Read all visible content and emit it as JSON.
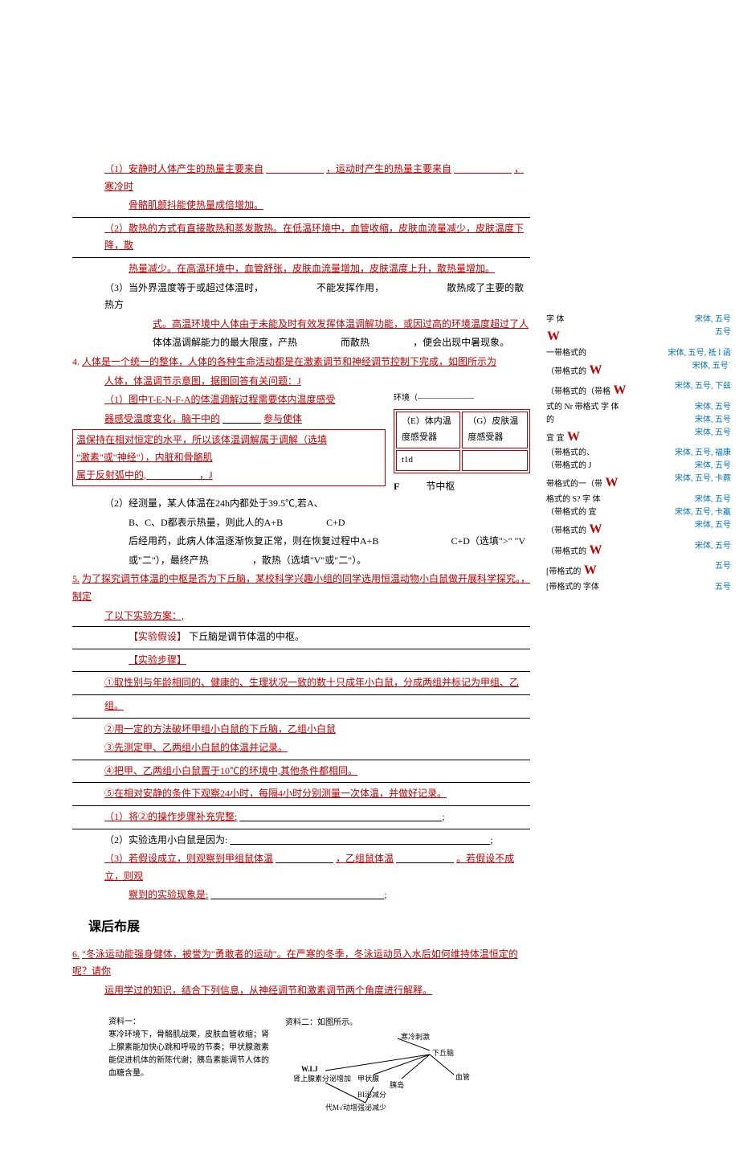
{
  "q1": {
    "line1_a": "（1）安静时人体产生的热量主要来自",
    "line1_b": "，运动时产生的热量主要来自",
    "line1_c": "，寒冷时",
    "line2": "骨骼肌颤抖能使热量成倍增加。",
    "line3": "（2）散热的方式有直接散热和蒸发散热。在低温环境中，血管收缩，皮肤血流量减少，皮肤温度下降，散",
    "line4": "热量减少。在高温环境中，血管舒张，皮肤血流量增加，皮肤温度上升，散热量增加。",
    "line5_a": "（3）当外界温度等于或超过体温时，",
    "line5_b": "不能发挥作用，",
    "line5_c": "散热成了主要的散热方",
    "line6": "式。高温环境中人体由于未能及时有效发挥体温调解功能，或因过高的环境温度超过了人",
    "line7_a": "体体温调解能力的最大限度，产热",
    "line7_b": "而散热",
    "line7_c": "，便会出现中暑现象。"
  },
  "q4": {
    "num": "4.",
    "title": "人体是一个统一的整体，人体的各种生命活动都是在激素调节和神经调节控制下完成，如图所示为",
    "line2": "人体，体温调节示意图，据图回答有关问题：J",
    "p1_a": "（1）图中T-E-N-F-A的体温调解过程需要体内温度感受",
    "p1_b": "器感受温度变化，脑干中的",
    "p1_c": "参与使体",
    "p1_d": "温保持在相对恒定的水平，所以该体温调解属于调解（选填",
    "p1_e": "\"激素\"或\"神经\"），内脏和骨骼肌",
    "p1_f": "属于反射弧中的,",
    "p1_g": "，J",
    "table": {
      "r1c1": "（E）体内温度感受器",
      "r1c2": "（G）皮肤温度感受器",
      "r2c1": "t1d"
    },
    "env_label": "环境（",
    "f_label": "F",
    "center_label": "节中枢",
    "p2_a": "（2）经测量，某人体温在24h内都处于39.5℃,若A、",
    "p2_b": "B、C、D都表示热量，则此人的A+B",
    "p2_c": "C+D",
    "p2_d": "后经用药，此病人体温逐渐恢复正常，则在恢复过程中A+B",
    "p2_e": "C+D（选填\">\" \"V",
    "p2_f": "或\"二\"），最终产热",
    "p2_g": "，散热（选填\"V\"或\"二\"）。"
  },
  "q5": {
    "num": "5.",
    "title": "为了探究调节体温的中枢是否为下丘脑，某校科学兴趣小组的同学选用恒温动物小白鼠做开展科学探究。，制定",
    "line2": "了以下实验方案：,",
    "hyp_label": "【实验假设】",
    "hyp_text": "下丘脑是调节体温的中枢。",
    "step_label": "【实验步骤】",
    "step1": "①取性别与年龄相同的、健康的、生理状况一致的数十只成年小白鼠，分成两组并标记为甲组、乙",
    "step1b": "组。",
    "step2": "②用一定的方法破坏甲组小白鼠的下丘脑，乙组小白鼠",
    "step3": "③先测定甲、乙两组小白鼠的体温并记录。",
    "step4": "④把甲、乙两组小白鼠置于10℃的环境中,其他条件都相同。",
    "step5": "⑤在相对安静的条件下观察24小时，每隔4小时分别测量一次体温，并做好记录。",
    "sub1": "（1）将②的操作步骤补充完整:",
    "sub2": "（2）实验选用小白鼠是因为:",
    "sub3_a": "（3）若假设成立，则观察到甲组鼠体温",
    "sub3_b": "，乙组鼠体温",
    "sub3_c": "。若假设不成立，则观",
    "sub3_d": "察到的实验现象是:"
  },
  "section_title": "课后布展",
  "q6": {
    "num": "6.",
    "title": "\"冬泳运动能强身健体，被誉为\"勇敢者的运动\"。在严寒的冬季，冬泳运动员入水后如何维持体温恒定的呢？请你",
    "line2": "运用学过的知识，结合下列信息，从神经调节和激素调节两个角度进行解释。"
  },
  "material": {
    "left_title": "资料一：",
    "left_text": "寒冷环境下，骨骼肌战栗，皮肤血管收缩；肾上腺素能加快心跳和呼吸的节奏；甲状腺激素能促进机体的新陈代谢；胰岛素能调节人体的血糖含量。",
    "right_title": "资料二：如图所示。",
    "diagram": {
      "label1": "寒冷刺激",
      "label2": "下丘脑",
      "label3": "W.I.J",
      "label4": "肾上腺素分泌增加",
      "label5": "甲状腺",
      "label6": "胰岛",
      "label7": "血管",
      "label8": "BI泌减分",
      "label9": "代M√动增强泌减少"
    }
  },
  "side": {
    "rows": [
      {
        "left": "字 体",
        "right": "宋体, 五号"
      },
      {
        "left": "W",
        "right": "五号",
        "big": true
      },
      {
        "left": "一带格式的",
        "right": "宋体, 五号, 祗 İ 函"
      },
      {
        "left": "（带格式的 W",
        "right": "宋体, 五号`",
        "big": true
      },
      {
        "left": "（带格式的（带格 W",
        "right": "宋体, 五号, 下兹",
        "big": true
      },
      {
        "left": "式的 Nr 带格式 字 体",
        "right": "宋体, 五号"
      },
      {
        "left": "的",
        "right": "宋体, 五号"
      },
      {
        "left": "宜 宜 W",
        "right": "宋体, 五号",
        "big": true
      },
      {
        "left": "（带格式的、",
        "right": "宋体, 五号, 福康"
      },
      {
        "left": "（带格式的 J",
        "right": "宋体, 五号"
      },
      {
        "left": "带格式的一（带 W",
        "right": "宋体, 五号, 卡蕨",
        "big": true
      },
      {
        "left": "格式的 S? 字 体",
        "right": "宋体, 五号"
      },
      {
        "left": "（带格式的 宜",
        "right": "宋体, 五号, 卡蠃"
      },
      {
        "left": "（带格式的 W",
        "right": "宋体, 五号",
        "big": true
      },
      {
        "left": "（带格式的 W",
        "right": "宋体, 五号",
        "big": true
      },
      {
        "left": "[带格式的 W",
        "right": "五号",
        "big": true
      },
      {
        "left": "[带格式的 字体",
        "right": "五号"
      }
    ]
  }
}
